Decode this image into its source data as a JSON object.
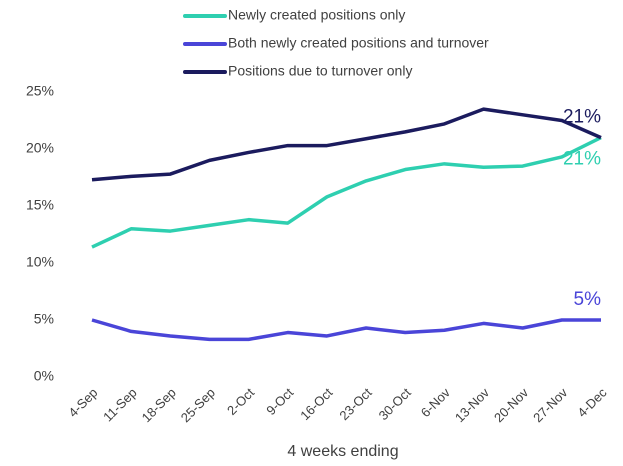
{
  "chart_data": {
    "type": "line",
    "categories": [
      "4-Sep",
      "11-Sep",
      "18-Sep",
      "25-Sep",
      "2-Oct",
      "9-Oct",
      "16-Oct",
      "23-Oct",
      "30-Oct",
      "6-Nov",
      "13-Nov",
      "20-Nov",
      "27-Nov",
      "4-Dec"
    ],
    "series": [
      {
        "name": "Newly created positions only",
        "color": "#2ecfb0",
        "values": [
          11.4,
          13.0,
          12.8,
          13.3,
          13.8,
          13.5,
          15.8,
          17.2,
          18.2,
          18.7,
          18.4,
          18.5,
          19.3,
          21.0
        ],
        "value_labels": [
          null,
          null,
          null,
          null,
          null,
          null,
          null,
          null,
          null,
          null,
          null,
          null,
          null,
          "21%"
        ]
      },
      {
        "name": "Both newly created positions and turnover",
        "color": "#4a45d8",
        "values": [
          5.0,
          4.0,
          3.6,
          3.3,
          3.3,
          3.9,
          3.6,
          4.3,
          3.9,
          4.1,
          4.7,
          4.3,
          5.0,
          5.0
        ],
        "value_labels": [
          null,
          null,
          null,
          null,
          null,
          null,
          null,
          null,
          null,
          null,
          null,
          null,
          null,
          "5%"
        ]
      },
      {
        "name": "Positions due to turnover only",
        "color": "#1b1b5e",
        "values": [
          17.3,
          17.6,
          17.8,
          19.0,
          19.7,
          20.3,
          20.3,
          20.9,
          21.5,
          22.2,
          23.5,
          23.0,
          22.5,
          21.0
        ],
        "value_labels": [
          null,
          null,
          null,
          null,
          null,
          null,
          null,
          null,
          null,
          null,
          null,
          null,
          null,
          "21%"
        ]
      }
    ],
    "x_label": "4 weeks ending",
    "ylim": [
      0,
      25
    ],
    "yticks": [
      {
        "value": 0,
        "label": "0%"
      },
      {
        "value": 5,
        "label": "5%"
      },
      {
        "value": 10,
        "label": "10%"
      },
      {
        "value": 15,
        "label": "15%"
      },
      {
        "value": 20,
        "label": "20%"
      },
      {
        "value": 25,
        "label": "25%"
      }
    ],
    "grid": false
  }
}
